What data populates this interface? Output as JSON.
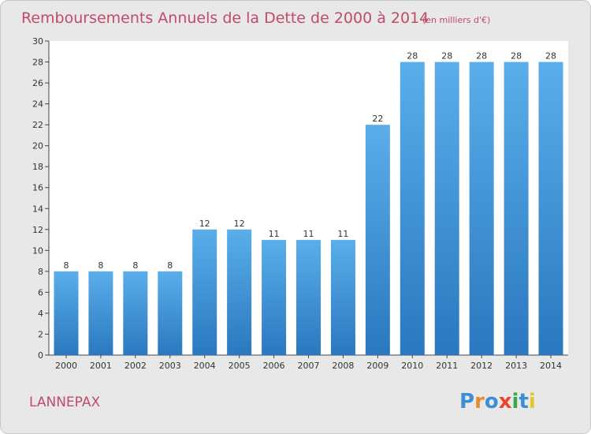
{
  "chart_data": {
    "type": "bar",
    "title": "Remboursements Annuels de la Dette de 2000 à 2014",
    "subtitle": "(en milliers d'€)",
    "categories": [
      "2000",
      "2001",
      "2002",
      "2003",
      "2004",
      "2005",
      "2006",
      "2007",
      "2008",
      "2009",
      "2010",
      "2011",
      "2012",
      "2013",
      "2014"
    ],
    "values": [
      8,
      8,
      8,
      8,
      12,
      12,
      11,
      11,
      11,
      22,
      28,
      28,
      28,
      28,
      28
    ],
    "data_labels": [
      "8",
      "8",
      "8",
      "8",
      "12",
      "12",
      "11",
      "11",
      "11",
      "22",
      "28",
      "28",
      "28",
      "28",
      "28"
    ],
    "ylim": [
      0,
      30
    ],
    "yticks": [
      0,
      2,
      4,
      6,
      8,
      10,
      12,
      14,
      16,
      18,
      20,
      22,
      24,
      26,
      28,
      30
    ],
    "xlabel": "",
    "ylabel": "",
    "grid": false,
    "bar_color": "#3a8fd6"
  },
  "footer": {
    "place": "LANNEPAX",
    "logo": "Proxiti"
  },
  "colors": {
    "title": "#c24a6a",
    "background": "#e8e8e8",
    "plot_background": "#ffffff"
  }
}
